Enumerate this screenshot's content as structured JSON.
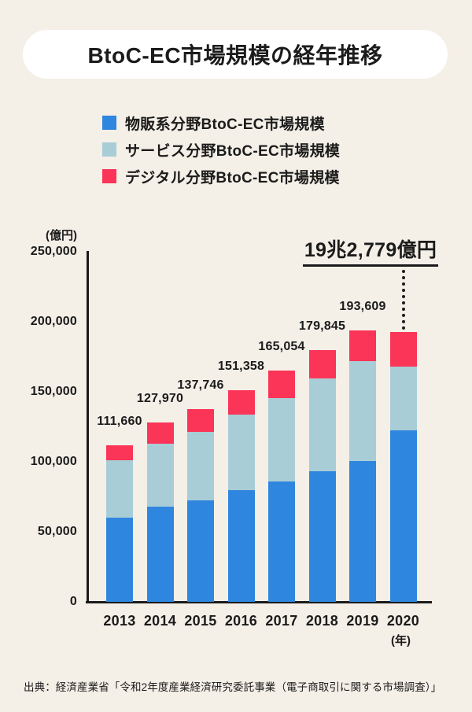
{
  "title": "BtoC-EC市場規模の経年推移",
  "legend": {
    "items": [
      {
        "label": "物販系分野BtoC-EC市場規模",
        "color": "#2F86DF"
      },
      {
        "label": "サービス分野BtoC-EC市場規模",
        "color": "#A9CDD6"
      },
      {
        "label": "デジタル分野BtoC-EC市場規模",
        "color": "#FA3557"
      }
    ]
  },
  "source": "出典：経済産業省「令和2年度産業経済研究委託事業（電子商取引に関する市場調査）」",
  "colors": {
    "background": "#F4EFE7",
    "title_panel": "#FFFFFF",
    "text": "#1B1B1B",
    "axis": "#1B1B1B",
    "series_physical": "#2F86DF",
    "series_service": "#A9CDD6",
    "series_digital": "#FA3557"
  },
  "chart_data": {
    "type": "bar",
    "stacked": true,
    "title": "BtoC-EC市場規模の経年推移",
    "y_unit_label": "(億円)",
    "x_unit_label": "(年)",
    "xlabel": "年",
    "ylabel": "億円",
    "ylim": [
      0,
      250000
    ],
    "grid": false,
    "legend_position": "top-left",
    "categories": [
      "2013",
      "2014",
      "2015",
      "2016",
      "2017",
      "2018",
      "2019",
      "2020"
    ],
    "series": [
      {
        "name": "物販系分野BtoC-EC市場規模",
        "key": "physical",
        "color": "#2F86DF",
        "values": [
          59931,
          68043,
          72398,
          80043,
          86008,
          92992,
          100515,
          122333
        ]
      },
      {
        "name": "サービス分野BtoC-EC市場規模",
        "key": "service",
        "color": "#A9CDD6",
        "values": [
          41210,
          44816,
          49014,
          53532,
          59568,
          66471,
          71672,
          45832
        ]
      },
      {
        "name": "デジタル分野BtoC-EC市場規模",
        "key": "digital",
        "color": "#FA3557",
        "values": [
          10519,
          15111,
          16334,
          17782,
          19478,
          20382,
          21422,
          24614
        ]
      }
    ],
    "totals": [
      111660,
      127970,
      137746,
      151358,
      165054,
      179845,
      193609,
      192779
    ],
    "total_labels": [
      "111,660",
      "127,970",
      "137,746",
      "151,358",
      "165,054",
      "179,845",
      "193,609",
      ""
    ],
    "yticks": [
      {
        "value": 0,
        "label": "0"
      },
      {
        "value": 50000,
        "label": "50,000"
      },
      {
        "value": 100000,
        "label": "100,000"
      },
      {
        "value": 150000,
        "label": "150,000"
      },
      {
        "value": 200000,
        "label": "200,000"
      },
      {
        "value": 250000,
        "label": "250,000"
      }
    ],
    "annotation": {
      "target": "2020",
      "text": "19兆2,779億円"
    }
  }
}
